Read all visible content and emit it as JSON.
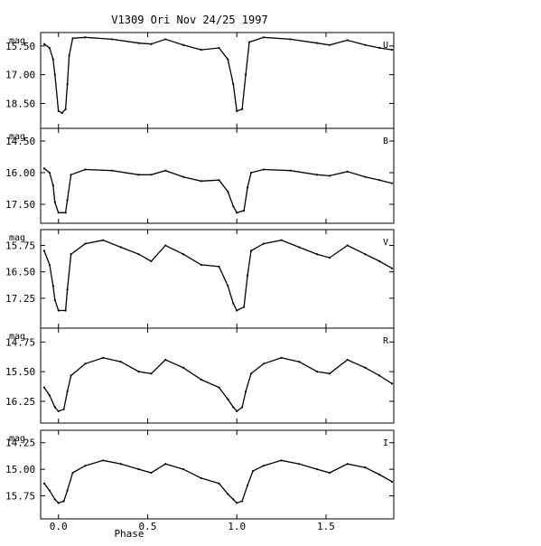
{
  "chart_data": {
    "type": "scatter",
    "title": "V1309 Ori Nov 24/25 1997",
    "xlabel": "Phase",
    "xlim": [
      -0.1,
      1.88
    ],
    "xticks": [
      "0.0",
      "0.5",
      "1.0",
      "1.5"
    ],
    "xtick_values": [
      0,
      0.5,
      1.0,
      1.5
    ],
    "y_inverted": true,
    "grid": false,
    "panels": [
      {
        "band": "U",
        "ylabel": "mag",
        "ylim": [
          14.8,
          19.8
        ],
        "ytick_labels": [
          "15.50",
          "17.00",
          "18.50"
        ],
        "ytick_values": [
          15.5,
          17.0,
          18.5
        ],
        "points": [
          [
            -0.08,
            15.4
          ],
          [
            -0.05,
            15.6
          ],
          [
            -0.03,
            16.2
          ],
          [
            -0.02,
            17.0
          ],
          [
            0.0,
            18.9
          ],
          [
            0.02,
            19.0
          ],
          [
            0.04,
            18.8
          ],
          [
            0.05,
            17.5
          ],
          [
            0.06,
            16.0
          ],
          [
            0.08,
            15.1
          ],
          [
            0.15,
            15.05
          ],
          [
            0.3,
            15.15
          ],
          [
            0.45,
            15.35
          ],
          [
            0.52,
            15.4
          ],
          [
            0.6,
            15.15
          ],
          [
            0.7,
            15.45
          ],
          [
            0.8,
            15.7
          ],
          [
            0.9,
            15.6
          ],
          [
            0.95,
            16.2
          ],
          [
            0.98,
            17.5
          ],
          [
            1.0,
            18.9
          ],
          [
            1.03,
            18.8
          ],
          [
            1.05,
            17.0
          ],
          [
            1.07,
            15.3
          ],
          [
            1.15,
            15.05
          ],
          [
            1.3,
            15.15
          ],
          [
            1.45,
            15.35
          ],
          [
            1.52,
            15.45
          ],
          [
            1.62,
            15.2
          ],
          [
            1.72,
            15.45
          ],
          [
            1.8,
            15.6
          ],
          [
            1.87,
            15.7
          ]
        ]
      },
      {
        "band": "B",
        "ylabel": "mag",
        "ylim": [
          13.9,
          18.4
        ],
        "ytick_labels": [
          "14.50",
          "16.00",
          "17.50"
        ],
        "ytick_values": [
          14.5,
          16.0,
          17.5
        ],
        "points": [
          [
            -0.08,
            15.8
          ],
          [
            -0.05,
            16.0
          ],
          [
            -0.03,
            16.6
          ],
          [
            -0.02,
            17.4
          ],
          [
            0.0,
            17.9
          ],
          [
            0.04,
            17.9
          ],
          [
            0.05,
            17.3
          ],
          [
            0.07,
            16.1
          ],
          [
            0.15,
            15.85
          ],
          [
            0.3,
            15.9
          ],
          [
            0.45,
            16.1
          ],
          [
            0.52,
            16.1
          ],
          [
            0.6,
            15.9
          ],
          [
            0.7,
            16.2
          ],
          [
            0.8,
            16.4
          ],
          [
            0.9,
            16.35
          ],
          [
            0.95,
            16.9
          ],
          [
            0.98,
            17.6
          ],
          [
            1.0,
            17.9
          ],
          [
            1.04,
            17.8
          ],
          [
            1.06,
            16.7
          ],
          [
            1.08,
            16.0
          ],
          [
            1.15,
            15.85
          ],
          [
            1.3,
            15.9
          ],
          [
            1.45,
            16.1
          ],
          [
            1.52,
            16.15
          ],
          [
            1.62,
            15.95
          ],
          [
            1.72,
            16.2
          ],
          [
            1.8,
            16.35
          ],
          [
            1.87,
            16.5
          ]
        ]
      },
      {
        "band": "V",
        "ylabel": "mag",
        "ylim": [
          15.3,
          18.1
        ],
        "ytick_labels": [
          "15.75",
          "16.50",
          "17.25"
        ],
        "ytick_values": [
          15.75,
          16.5,
          17.25
        ],
        "points": [
          [
            -0.08,
            15.9
          ],
          [
            -0.05,
            16.3
          ],
          [
            -0.03,
            16.9
          ],
          [
            -0.02,
            17.3
          ],
          [
            0.0,
            17.6
          ],
          [
            0.04,
            17.6
          ],
          [
            0.05,
            17.0
          ],
          [
            0.07,
            16.0
          ],
          [
            0.15,
            15.7
          ],
          [
            0.25,
            15.6
          ],
          [
            0.35,
            15.8
          ],
          [
            0.45,
            16.0
          ],
          [
            0.52,
            16.2
          ],
          [
            0.6,
            15.75
          ],
          [
            0.7,
            16.0
          ],
          [
            0.8,
            16.3
          ],
          [
            0.9,
            16.35
          ],
          [
            0.95,
            16.9
          ],
          [
            0.98,
            17.4
          ],
          [
            1.0,
            17.6
          ],
          [
            1.04,
            17.5
          ],
          [
            1.06,
            16.6
          ],
          [
            1.08,
            15.9
          ],
          [
            1.15,
            15.7
          ],
          [
            1.25,
            15.6
          ],
          [
            1.35,
            15.8
          ],
          [
            1.45,
            16.0
          ],
          [
            1.52,
            16.1
          ],
          [
            1.62,
            15.75
          ],
          [
            1.72,
            16.0
          ],
          [
            1.8,
            16.2
          ],
          [
            1.87,
            16.4
          ]
        ]
      },
      {
        "band": "R",
        "ylabel": "mag",
        "ylim": [
          14.4,
          16.8
        ],
        "ytick_labels": [
          "14.75",
          "15.50",
          "16.25"
        ],
        "ytick_values": [
          14.75,
          15.5,
          16.25
        ],
        "points": [
          [
            -0.08,
            15.9
          ],
          [
            -0.05,
            16.1
          ],
          [
            -0.02,
            16.4
          ],
          [
            0.0,
            16.5
          ],
          [
            0.03,
            16.45
          ],
          [
            0.05,
            16.0
          ],
          [
            0.07,
            15.6
          ],
          [
            0.15,
            15.3
          ],
          [
            0.25,
            15.15
          ],
          [
            0.35,
            15.25
          ],
          [
            0.45,
            15.5
          ],
          [
            0.52,
            15.55
          ],
          [
            0.6,
            15.2
          ],
          [
            0.7,
            15.4
          ],
          [
            0.8,
            15.7
          ],
          [
            0.9,
            15.9
          ],
          [
            0.95,
            16.2
          ],
          [
            0.98,
            16.4
          ],
          [
            1.0,
            16.5
          ],
          [
            1.03,
            16.4
          ],
          [
            1.05,
            16.0
          ],
          [
            1.08,
            15.55
          ],
          [
            1.15,
            15.3
          ],
          [
            1.25,
            15.15
          ],
          [
            1.35,
            15.25
          ],
          [
            1.45,
            15.5
          ],
          [
            1.52,
            15.55
          ],
          [
            1.62,
            15.2
          ],
          [
            1.72,
            15.4
          ],
          [
            1.8,
            15.6
          ],
          [
            1.87,
            15.8
          ]
        ]
      },
      {
        "band": "I",
        "ylabel": "mag",
        "ylim": [
          13.9,
          16.4
        ],
        "ytick_labels": [
          "14.25",
          "15.00",
          "15.75"
        ],
        "ytick_values": [
          14.25,
          15.0,
          15.75
        ],
        "points": [
          [
            -0.08,
            15.4
          ],
          [
            -0.05,
            15.6
          ],
          [
            -0.02,
            15.85
          ],
          [
            0.0,
            15.95
          ],
          [
            0.03,
            15.9
          ],
          [
            0.05,
            15.6
          ],
          [
            0.08,
            15.1
          ],
          [
            0.15,
            14.9
          ],
          [
            0.25,
            14.75
          ],
          [
            0.35,
            14.85
          ],
          [
            0.45,
            15.0
          ],
          [
            0.52,
            15.1
          ],
          [
            0.6,
            14.85
          ],
          [
            0.7,
            15.0
          ],
          [
            0.8,
            15.25
          ],
          [
            0.9,
            15.4
          ],
          [
            0.95,
            15.7
          ],
          [
            0.98,
            15.85
          ],
          [
            1.0,
            15.95
          ],
          [
            1.03,
            15.9
          ],
          [
            1.06,
            15.45
          ],
          [
            1.09,
            15.05
          ],
          [
            1.15,
            14.9
          ],
          [
            1.25,
            14.75
          ],
          [
            1.35,
            14.85
          ],
          [
            1.45,
            15.0
          ],
          [
            1.52,
            15.1
          ],
          [
            1.62,
            14.85
          ],
          [
            1.72,
            14.95
          ],
          [
            1.8,
            15.15
          ],
          [
            1.87,
            15.35
          ]
        ]
      }
    ]
  }
}
